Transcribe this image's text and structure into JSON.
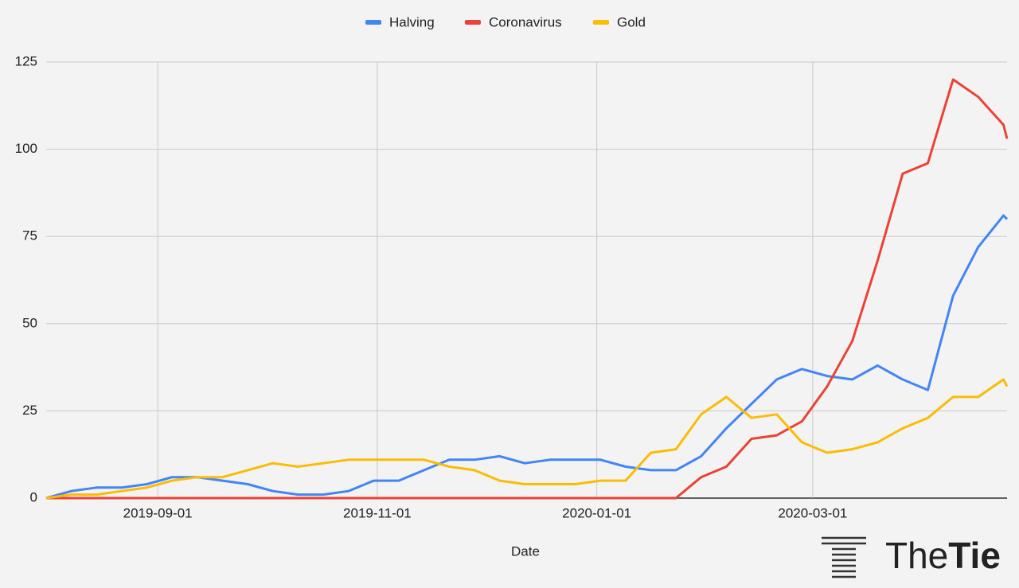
{
  "chart_data": {
    "type": "line",
    "x": [
      "2019-08-01",
      "2019-08-08",
      "2019-08-15",
      "2019-08-22",
      "2019-08-29",
      "2019-09-05",
      "2019-09-12",
      "2019-09-19",
      "2019-09-26",
      "2019-10-03",
      "2019-10-10",
      "2019-10-17",
      "2019-10-24",
      "2019-10-31",
      "2019-11-07",
      "2019-11-14",
      "2019-11-21",
      "2019-11-28",
      "2019-12-05",
      "2019-12-12",
      "2019-12-19",
      "2019-12-26",
      "2020-01-02",
      "2020-01-09",
      "2020-01-16",
      "2020-01-23",
      "2020-01-30",
      "2020-02-06",
      "2020-02-13",
      "2020-02-20",
      "2020-02-27",
      "2020-03-05",
      "2020-03-12",
      "2020-03-19",
      "2020-03-26",
      "2020-04-02",
      "2020-04-09",
      "2020-04-16",
      "2020-04-23",
      "2020-04-24"
    ],
    "series": [
      {
        "name": "Halving",
        "color": "#4285f4",
        "values": [
          0,
          2,
          3,
          3,
          4,
          6,
          6,
          5,
          4,
          2,
          1,
          1,
          2,
          5,
          5,
          8,
          11,
          11,
          12,
          10,
          11,
          11,
          11,
          9,
          8,
          8,
          12,
          20,
          27,
          34,
          37,
          35,
          34,
          38,
          34,
          31,
          58,
          72,
          81,
          80
        ]
      },
      {
        "name": "Coronavirus",
        "color": "#ea4335",
        "values": [
          0,
          0,
          0,
          0,
          0,
          0,
          0,
          0,
          0,
          0,
          0,
          0,
          0,
          0,
          0,
          0,
          0,
          0,
          0,
          0,
          0,
          0,
          0,
          0,
          0,
          0,
          6,
          9,
          17,
          18,
          22,
          32,
          45,
          68,
          93,
          96,
          120,
          115,
          107,
          103
        ]
      },
      {
        "name": "Gold",
        "color": "#fbbc04",
        "values": [
          0,
          1,
          1,
          2,
          3,
          5,
          6,
          6,
          8,
          10,
          9,
          10,
          11,
          11,
          11,
          11,
          9,
          8,
          5,
          4,
          4,
          4,
          5,
          5,
          13,
          14,
          24,
          29,
          23,
          24,
          16,
          13,
          14,
          16,
          20,
          23,
          29,
          29,
          34,
          32
        ]
      }
    ],
    "xlim": [
      "2019-08-01",
      "2020-04-24"
    ],
    "xticks": [
      "2019-09-01",
      "2019-11-01",
      "2020-01-01",
      "2020-03-01"
    ],
    "ylim": [
      0,
      125
    ],
    "yticks": [
      0,
      25,
      50,
      75,
      100,
      125
    ],
    "x_label": "Date",
    "grid": true,
    "legend": "top"
  },
  "logo": {
    "regular": "The",
    "bold": "Tie"
  }
}
